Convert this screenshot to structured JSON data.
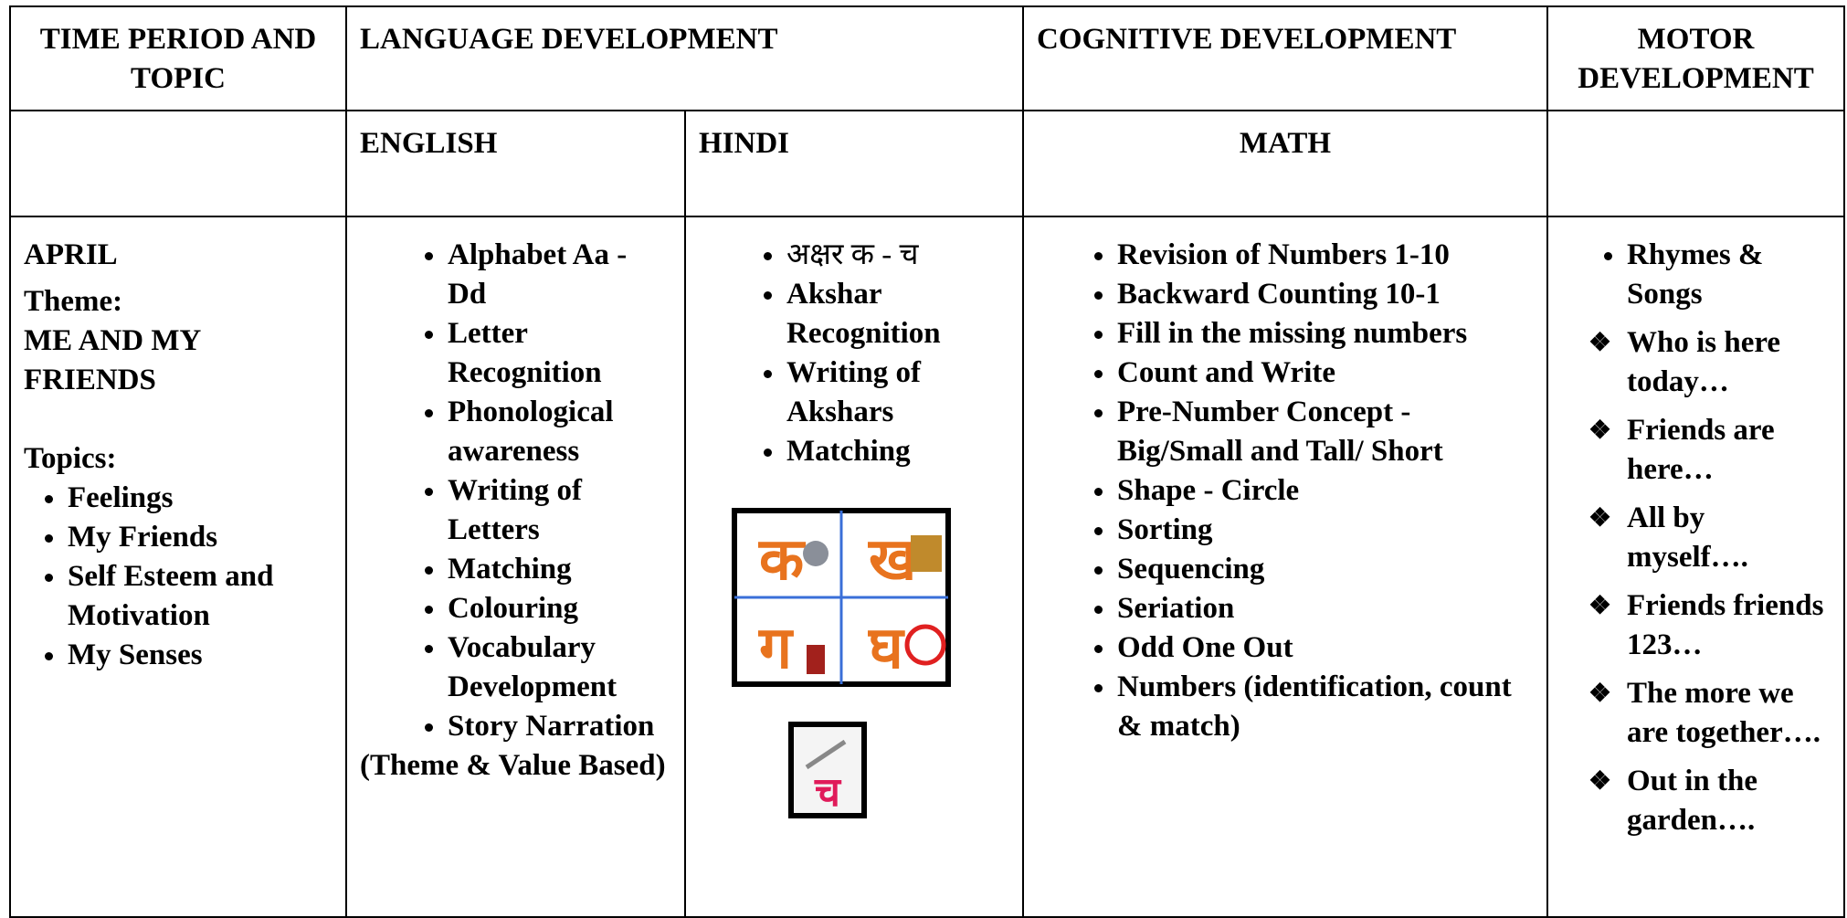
{
  "header": {
    "time_period": "TIME PERIOD AND TOPIC",
    "language": "LANGUAGE DEVELOPMENT",
    "cognitive": "COGNITIVE DEVELOPMENT",
    "motor": "MOTOR DEVELOPMENT"
  },
  "subheader": {
    "english": "ENGLISH",
    "hindi": "HINDI",
    "math": "MATH"
  },
  "april": {
    "month": "APRIL",
    "theme_label": "Theme:",
    "theme": "ME AND MY FRIENDS",
    "topics_label": "Topics:",
    "topics": [
      "Feelings",
      "My Friends",
      "Self Esteem and Motivation",
      "My Senses"
    ]
  },
  "english": {
    "items": [
      "Alphabet Aa - Dd",
      "Letter Recognition",
      "Phonological awareness",
      "Writing of Letters",
      "Matching",
      "Colouring",
      "Vocabulary Development",
      "Story Narration"
    ],
    "note": "(Theme & Value Based)"
  },
  "hindi": {
    "items": [
      "अक्षर क - च",
      "Akshar Recognition",
      "Writing of Akshars",
      "Matching"
    ],
    "image_letters": [
      "क",
      "ख",
      "ग",
      "घ"
    ],
    "image_letter_2": "च"
  },
  "math": {
    "items": [
      "Revision of Numbers 1-10",
      "Backward Counting 10-1",
      "Fill in the missing numbers",
      "Count and Write",
      "Pre-Number Concept - Big/Small and Tall/ Short",
      "Shape - Circle",
      "Sorting",
      "Sequencing",
      "Seriation",
      "Odd One Out",
      "Numbers (identification, count & match)"
    ]
  },
  "motor": {
    "first": "Rhymes & Songs",
    "songs": [
      "Who is here today…",
      "Friends are here…",
      "All by myself….",
      "Friends friends 123…",
      "The more we are together….",
      "Out in the garden…."
    ]
  }
}
